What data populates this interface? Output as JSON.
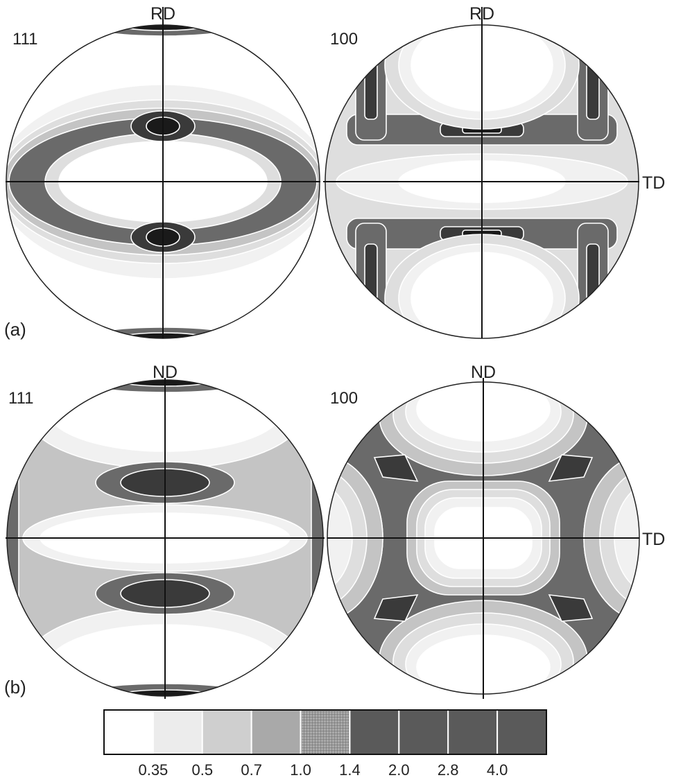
{
  "panels": [
    {
      "letter": "(a)",
      "plots": [
        {
          "pole": "111",
          "top_label": "RD",
          "right_label": "",
          "pattern": "a111"
        },
        {
          "pole": "100",
          "top_label": "RD",
          "right_label": "TD",
          "pattern": "a100"
        }
      ]
    },
    {
      "letter": "(b)",
      "plots": [
        {
          "pole": "111",
          "top_label": "ND",
          "right_label": "",
          "pattern": "b111"
        },
        {
          "pole": "100",
          "top_label": "ND",
          "right_label": "TD",
          "pattern": "b100"
        }
      ]
    }
  ],
  "scale": {
    "values": [
      "0.35",
      "0.5",
      "0.7",
      "1.0",
      "1.4",
      "2.0",
      "2.8",
      "4.0"
    ],
    "colors": [
      "#ffffff",
      "#ececec",
      "#cfcfcf",
      "#a9a9a9",
      "#8e8e8e",
      "#5a5a5a",
      "#5a5a5a",
      "#5a5a5a",
      "#5a5a5a"
    ]
  },
  "level_colors": [
    "#ffffff",
    "#f1f1f1",
    "#dedede",
    "#c4c4c4",
    "#a8a8a8",
    "#6a6a6a",
    "#3a3a3a",
    "#1a1a1a"
  ]
}
